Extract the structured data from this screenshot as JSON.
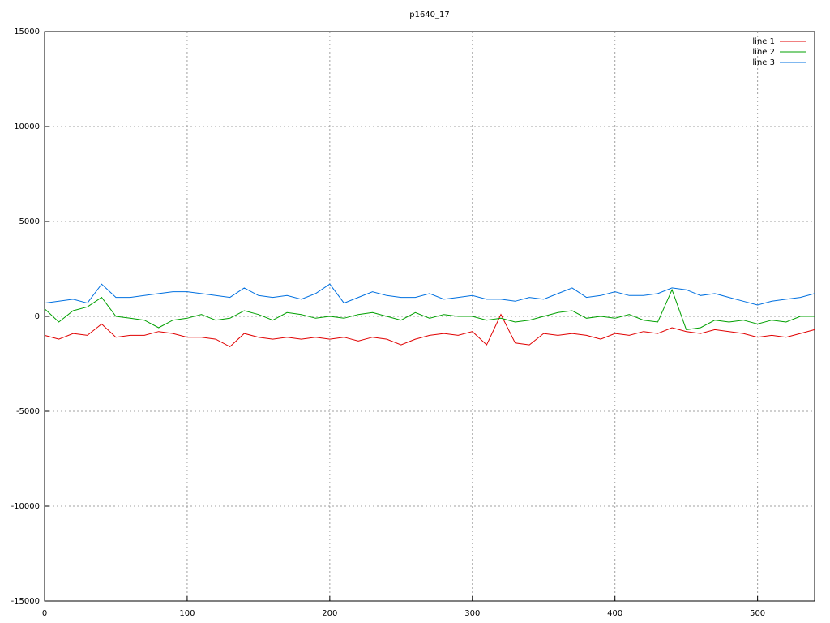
{
  "chart_data": {
    "type": "line",
    "title": "p1640_17",
    "x": [
      0,
      10,
      20,
      30,
      40,
      50,
      60,
      70,
      80,
      90,
      100,
      110,
      120,
      130,
      140,
      150,
      160,
      170,
      180,
      190,
      200,
      210,
      220,
      230,
      240,
      250,
      260,
      270,
      280,
      290,
      300,
      310,
      320,
      330,
      340,
      350,
      360,
      370,
      380,
      390,
      400,
      410,
      420,
      430,
      440,
      450,
      460,
      470,
      480,
      490,
      500,
      510,
      520,
      530,
      540
    ],
    "series": [
      {
        "name": "line 1",
        "color": "#e00000",
        "values": [
          -1000,
          -1200,
          -900,
          -1000,
          -400,
          -1100,
          -1000,
          -1000,
          -800,
          -900,
          -1100,
          -1100,
          -1200,
          -1600,
          -900,
          -1100,
          -1200,
          -1100,
          -1200,
          -1100,
          -1200,
          -1100,
          -1300,
          -1100,
          -1200,
          -1500,
          -1200,
          -1000,
          -900,
          -1000,
          -800,
          -1500,
          100,
          -1400,
          -1500,
          -900,
          -1000,
          -900,
          -1000,
          -1200,
          -900,
          -1000,
          -800,
          -900,
          -600,
          -800,
          -900,
          -700,
          -800,
          -900,
          -1100,
          -1000,
          -1100,
          -900,
          -700
        ]
      },
      {
        "name": "line 2",
        "color": "#00a000",
        "values": [
          400,
          -300,
          300,
          500,
          1000,
          0,
          -100,
          -200,
          -600,
          -200,
          -100,
          100,
          -200,
          -100,
          300,
          100,
          -200,
          200,
          100,
          -100,
          0,
          -100,
          100,
          200,
          0,
          -200,
          200,
          -100,
          100,
          0,
          0,
          -200,
          -100,
          -300,
          -200,
          0,
          200,
          300,
          -100,
          0,
          -100,
          100,
          -200,
          -300,
          1400,
          -700,
          -600,
          -200,
          -300,
          -200,
          -400,
          -200,
          -300,
          0,
          0
        ]
      },
      {
        "name": "line 3",
        "color": "#0070e0",
        "values": [
          700,
          800,
          900,
          700,
          1700,
          1000,
          1000,
          1100,
          1200,
          1300,
          1300,
          1200,
          1100,
          1000,
          1500,
          1100,
          1000,
          1100,
          900,
          1200,
          1700,
          700,
          1000,
          1300,
          1100,
          1000,
          1000,
          1200,
          900,
          1000,
          1100,
          900,
          900,
          800,
          1000,
          900,
          1200,
          1500,
          1000,
          1100,
          1300,
          1100,
          1100,
          1200,
          1500,
          1400,
          1100,
          1200,
          1000,
          800,
          600,
          800,
          900,
          1000,
          1200
        ]
      }
    ],
    "xlim": [
      0,
      540
    ],
    "ylim": [
      -15000,
      15000
    ],
    "xticks": [
      0,
      100,
      200,
      300,
      400,
      500
    ],
    "yticks": [
      -15000,
      -10000,
      -5000,
      0,
      5000,
      10000,
      15000
    ],
    "grid": true,
    "legend": "top-right"
  }
}
